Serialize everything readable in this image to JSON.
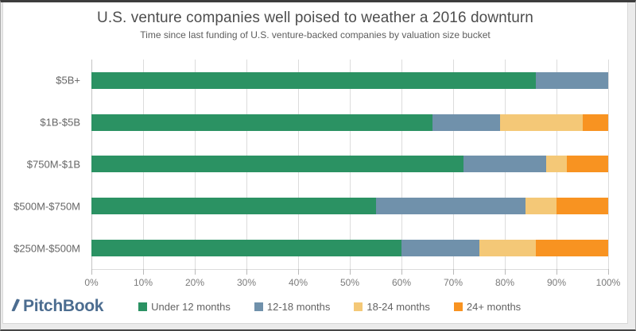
{
  "header": {
    "title": "U.S. venture companies well poised to weather a 2016 downturn",
    "subtitle": "Time since last funding of U.S. venture-backed companies by valuation size bucket"
  },
  "footer": {
    "brand": "PitchBook",
    "brand_color": "#4c6d90"
  },
  "chart_data": {
    "type": "bar",
    "orientation": "horizontal",
    "stacked": true,
    "title": "U.S. venture companies well poised to weather a 2016 downturn",
    "subtitle": "Time since last funding of U.S. venture-backed companies by valuation size bucket",
    "categories": [
      "$5B+",
      "$1B-$5B",
      "$750M-$1B",
      "$500M-$750M",
      "$250M-$500M"
    ],
    "series": [
      {
        "name": "Under 12 months",
        "color": "#2b9263",
        "values": [
          86,
          66,
          72,
          55,
          60
        ]
      },
      {
        "name": "12-18 months",
        "color": "#7091ab",
        "values": [
          14,
          13,
          16,
          29,
          15
        ]
      },
      {
        "name": "18-24 months",
        "color": "#f4c877",
        "values": [
          0,
          16,
          4,
          6,
          11
        ]
      },
      {
        "name": "24+ months",
        "color": "#f89321",
        "values": [
          0,
          5,
          8,
          10,
          14
        ]
      }
    ],
    "x_ticks": [
      "0%",
      "10%",
      "20%",
      "30%",
      "40%",
      "50%",
      "60%",
      "70%",
      "80%",
      "90%",
      "100%"
    ],
    "xlim": [
      0,
      100
    ],
    "unit": "percent",
    "grid": true,
    "gridline_color": "#dcdcdc",
    "legend_position": "bottom"
  }
}
